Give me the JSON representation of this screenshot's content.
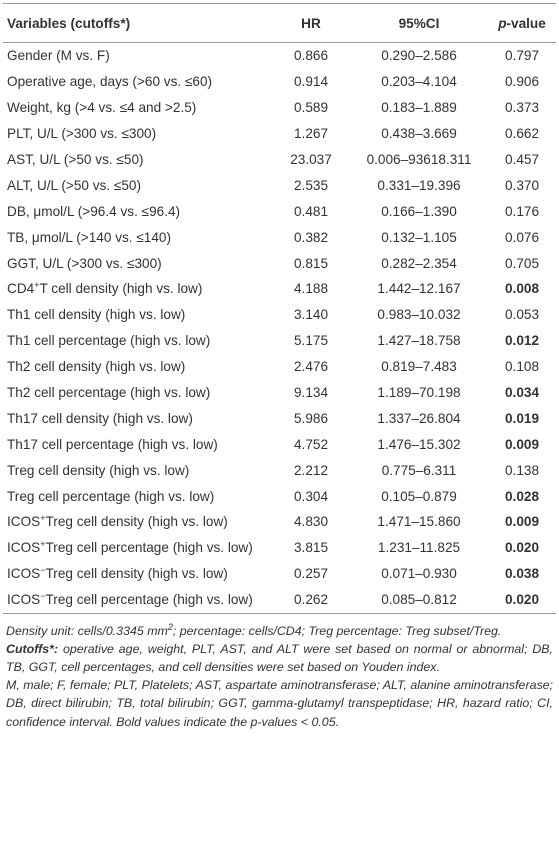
{
  "table": {
    "header": [
      [
        {
          "text": "Variables (cutoffs*)"
        }
      ],
      [
        {
          "text": "HR"
        }
      ],
      [
        {
          "text": "95%CI"
        }
      ],
      [
        {
          "text": "p",
          "italic": true
        },
        {
          "text": "-value"
        }
      ]
    ],
    "rows": [
      [
        [
          {
            "text": "Gender (M vs. F)"
          }
        ],
        "0.866",
        "0.290–2.586",
        "0.797"
      ],
      [
        [
          {
            "text": "Operative age, days (>60 vs. ≤60)"
          }
        ],
        "0.914",
        "0.203–4.104",
        "0.906"
      ],
      [
        [
          {
            "text": "Weight, kg (>4 vs. ≤4 and >2.5)"
          }
        ],
        "0.589",
        "0.183–1.889",
        "0.373"
      ],
      [
        [
          {
            "text": "PLT, U/L (>300 vs. ≤300)"
          }
        ],
        "1.267",
        "0.438–3.669",
        "0.662"
      ],
      [
        [
          {
            "text": "AST, U/L (>50 vs. ≤50)"
          }
        ],
        "23.037",
        "0.006–93618.311",
        "0.457"
      ],
      [
        [
          {
            "text": "ALT, U/L (>50 vs. ≤50)"
          }
        ],
        "2.535",
        "0.331–19.396",
        "0.370"
      ],
      [
        [
          {
            "text": "DB, μmol/L (>96.4 vs. ≤96.4)"
          }
        ],
        "0.481",
        "0.166–1.390",
        "0.176"
      ],
      [
        [
          {
            "text": "TB, μmol/L (>140 vs. ≤140)"
          }
        ],
        "0.382",
        "0.132–1.105",
        "0.076"
      ],
      [
        [
          {
            "text": "GGT, U/L (>300 vs. ≤300)"
          }
        ],
        "0.815",
        "0.282–2.354",
        "0.705"
      ],
      [
        [
          {
            "text": "CD4"
          },
          {
            "text": "+",
            "sup": true
          },
          {
            "text": "T cell density (high vs. low)"
          }
        ],
        "4.188",
        "1.442–12.167",
        "0.008"
      ],
      [
        [
          {
            "text": "Th1 cell density (high vs. low)"
          }
        ],
        "3.140",
        "0.983–10.032",
        "0.053"
      ],
      [
        [
          {
            "text": "Th1 cell percentage (high vs. low)"
          }
        ],
        "5.175",
        "1.427–18.758",
        "0.012"
      ],
      [
        [
          {
            "text": "Th2 cell density (high vs. low)"
          }
        ],
        "2.476",
        "0.819–7.483",
        "0.108"
      ],
      [
        [
          {
            "text": "Th2 cell percentage (high vs. low)"
          }
        ],
        "9.134",
        "1.189–70.198",
        "0.034"
      ],
      [
        [
          {
            "text": "Th17 cell density (high vs. low)"
          }
        ],
        "5.986",
        "1.337–26.804",
        "0.019"
      ],
      [
        [
          {
            "text": "Th17 cell percentage (high vs. low)"
          }
        ],
        "4.752",
        "1.476–15.302",
        "0.009"
      ],
      [
        [
          {
            "text": "Treg cell density (high vs. low)"
          }
        ],
        "2.212",
        "0.775–6.311",
        "0.138"
      ],
      [
        [
          {
            "text": "Treg cell percentage (high vs. low)"
          }
        ],
        "0.304",
        "0.105–0.879",
        "0.028"
      ],
      [
        [
          {
            "text": "ICOS"
          },
          {
            "text": "+",
            "sup": true
          },
          {
            "text": "Treg cell density (high vs. low)"
          }
        ],
        "4.830",
        "1.471–15.860",
        "0.009"
      ],
      [
        [
          {
            "text": "ICOS"
          },
          {
            "text": "+",
            "sup": true
          },
          {
            "text": "Treg cell percentage (high vs. low)"
          }
        ],
        "3.815",
        "1.231–11.825",
        "0.020"
      ],
      [
        [
          {
            "text": "ICOS"
          },
          {
            "text": "−",
            "sup": true
          },
          {
            "text": "Treg cell density (high vs. low)"
          }
        ],
        "0.257",
        "0.071–0.930",
        "0.038"
      ],
      [
        [
          {
            "text": "ICOS"
          },
          {
            "text": "−",
            "sup": true
          },
          {
            "text": "Treg cell percentage (high vs. low)"
          }
        ],
        "0.262",
        "0.085–0.812",
        "0.020"
      ]
    ],
    "bold_below": 0.05,
    "notes": [
      [
        {
          "text": "Density unit: cells/0.3345 mm"
        },
        {
          "text": "2",
          "sup": true
        },
        {
          "text": "; percentage: cells/CD4; Treg percentage: Treg subset/Treg."
        }
      ],
      [
        {
          "text": "Cutoffs*:",
          "bold": true
        },
        {
          "text": " operative age, weight, PLT, AST, and ALT were set based on normal or abnormal; DB, TB, GGT, cell percentages, and cell densities were set based on Youden index."
        }
      ],
      [
        {
          "text": "M, male; F, female; PLT, Platelets; AST, aspartate aminotransferase; ALT, alanine aminotransferase; DB, direct bilirubin; TB, total bilirubin; GGT, gamma-glutamyl transpeptidase; HR, hazard ratio; CI, confidence interval. Bold values indicate the p-values < 0.05."
        }
      ]
    ]
  }
}
